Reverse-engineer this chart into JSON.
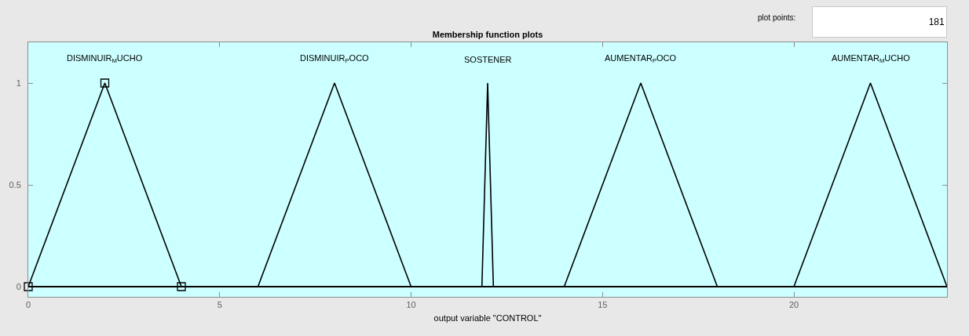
{
  "chart_data": {
    "type": "line",
    "title": "Membership function plots",
    "xlabel": "output variable \"CONTROL\"",
    "annotations": [
      "plot points:",
      "181"
    ],
    "series": [
      {
        "name": "DISMINUIR$_{M}$UCHO",
        "color": "#000000",
        "x": [
          0,
          2,
          4
        ],
        "values": [
          0,
          1,
          0
        ],
        "marker": "square"
      },
      {
        "name": "DISMINUIR$_{P}$OCO",
        "color": "#000000",
        "x": [
          6,
          8,
          10
        ],
        "values": [
          0,
          1,
          0
        ]
      },
      {
        "name": "SOSTENER",
        "color": "#000000",
        "x": [
          11.85,
          12,
          12.15
        ],
        "values": [
          0,
          1,
          0
        ]
      },
      {
        "name": "AUMENTAR$_{P}$OCO",
        "color": "#000000",
        "x": [
          14,
          16,
          18
        ],
        "values": [
          0,
          1,
          0
        ]
      },
      {
        "name": "AUMENTAR$_{M}$UCHO",
        "color": "#000000",
        "x": [
          20,
          22,
          24
        ],
        "values": [
          0,
          1,
          0
        ]
      }
    ],
    "ref_lines": [
      {
        "axis": "y",
        "value": 0,
        "color": "#000000"
      }
    ],
    "xlim": [
      0,
      24
    ],
    "xticks": [
      0,
      5,
      10,
      15,
      20
    ],
    "ylim": [
      -0.05,
      1.2
    ],
    "yticks": [
      0,
      0.5,
      1
    ],
    "grid": false,
    "legend": false,
    "line_style": "solid"
  }
}
